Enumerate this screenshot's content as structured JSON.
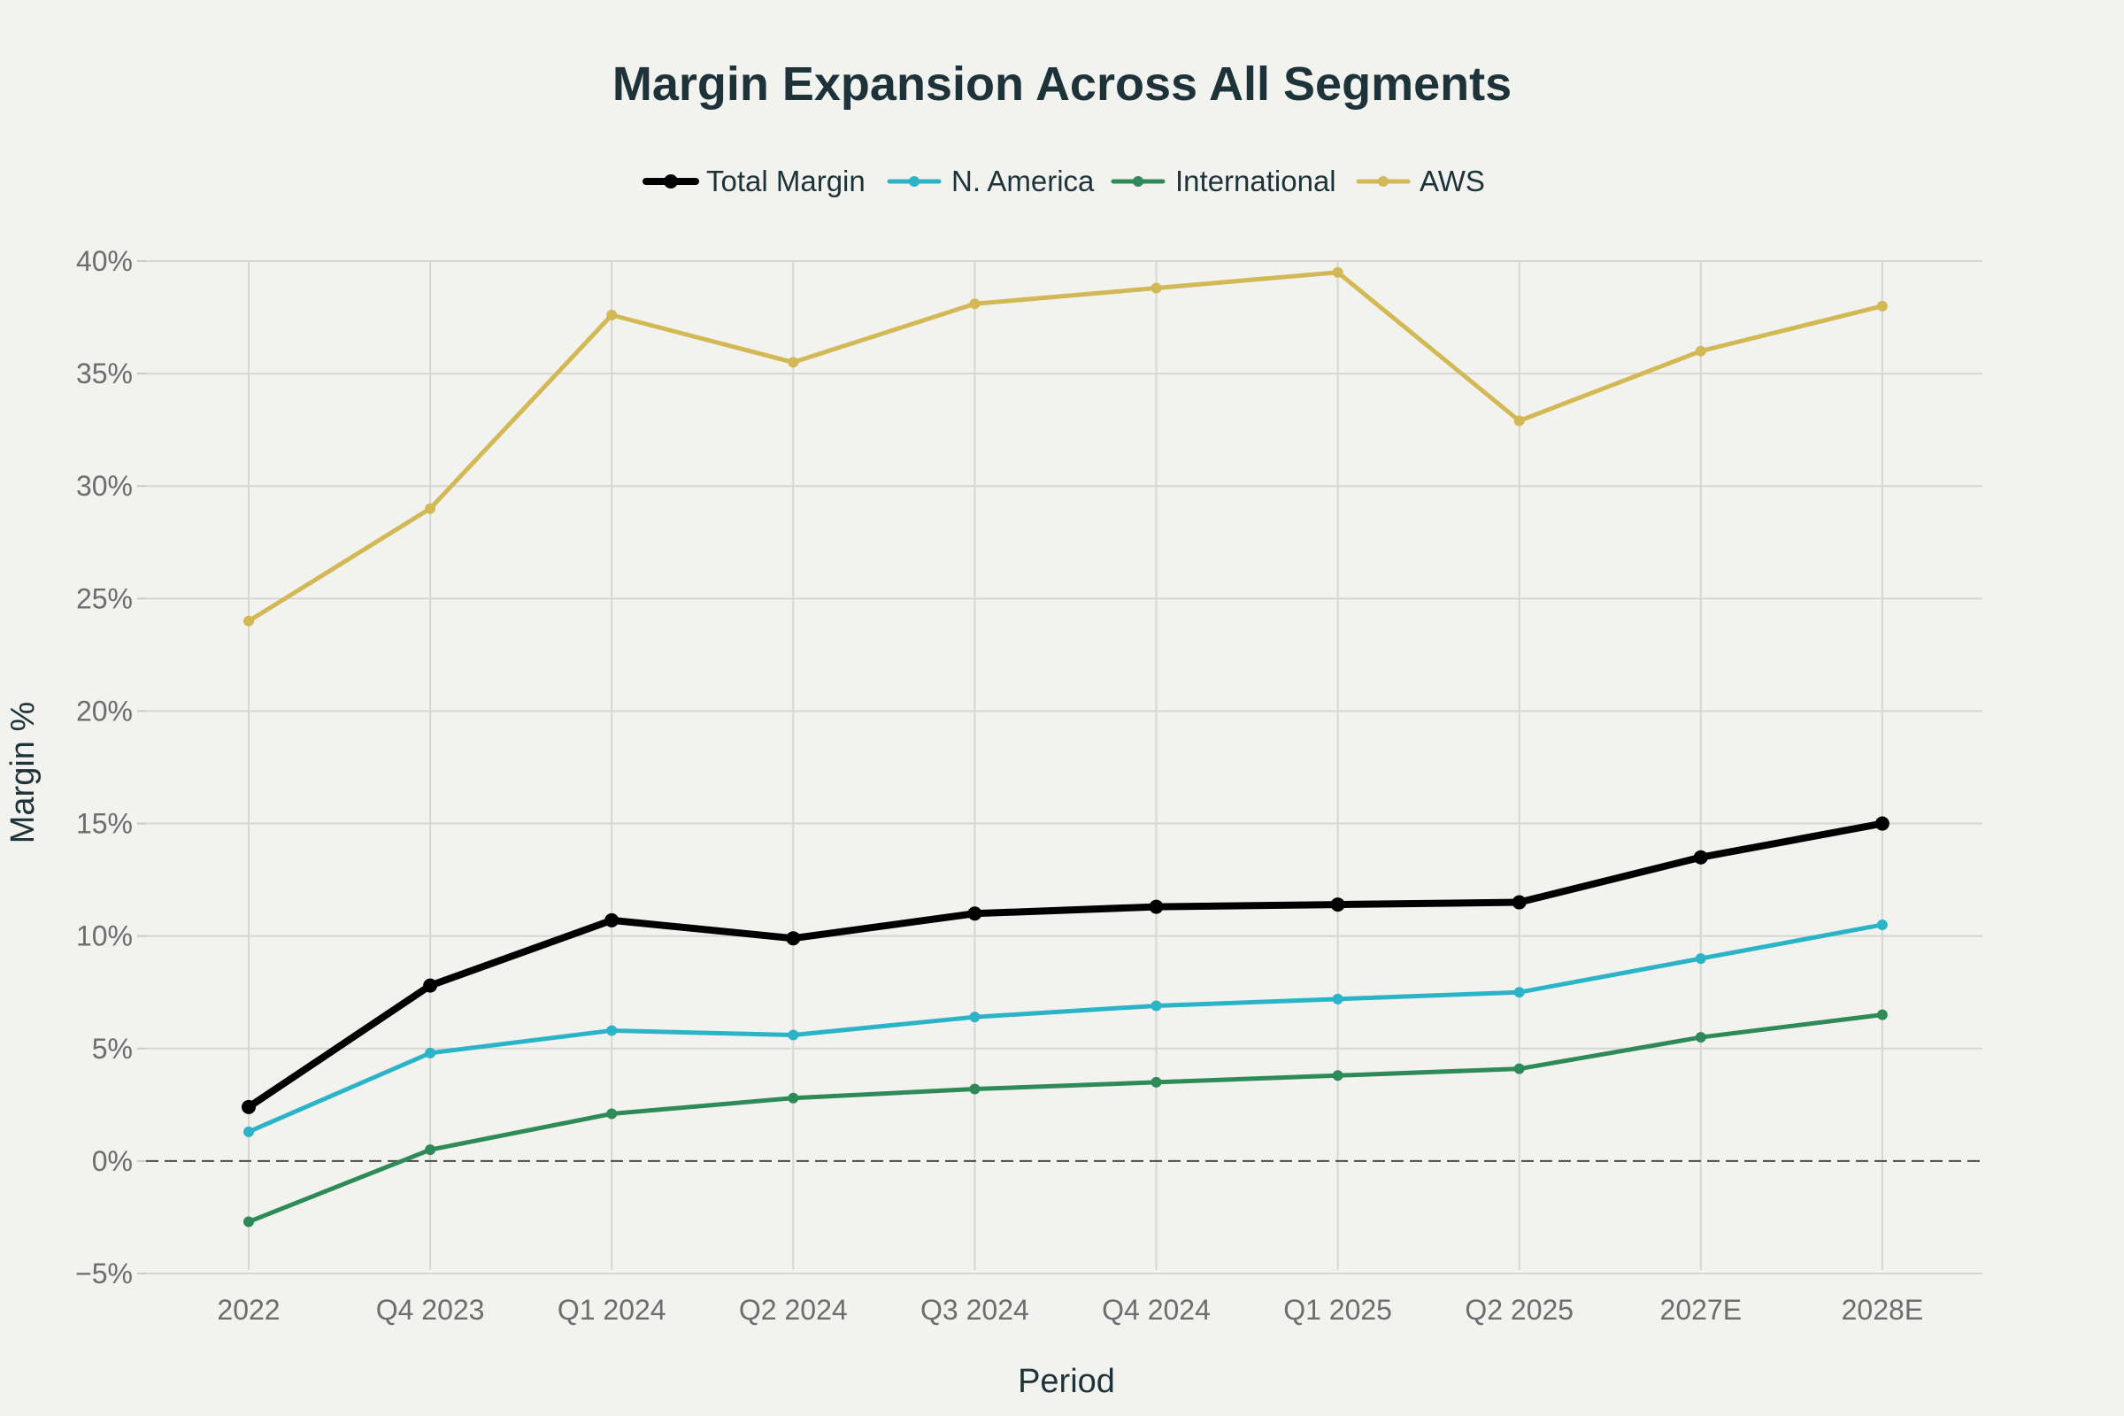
{
  "chart_data": {
    "type": "line",
    "title": "Margin Expansion Across All Segments",
    "xlabel": "Period",
    "ylabel": "Margin %",
    "categories": [
      "2022",
      "Q4 2023",
      "Q1 2024",
      "Q2 2024",
      "Q3 2024",
      "Q4 2024",
      "Q1 2025",
      "Q2 2025",
      "2027E",
      "2028E"
    ],
    "ylim": [
      -5,
      40
    ],
    "yticks": [
      -5,
      0,
      5,
      10,
      15,
      20,
      25,
      30,
      35,
      40
    ],
    "ytick_labels": [
      "−5%",
      "0%",
      "5%",
      "10%",
      "15%",
      "20%",
      "25%",
      "30%",
      "35%",
      "40%"
    ],
    "zero_line": true,
    "grid": true,
    "legend_position": "top-center",
    "series": [
      {
        "name": "Total Margin",
        "color": "#000000",
        "emphasis": true,
        "values": [
          2.4,
          7.8,
          10.7,
          9.9,
          11.0,
          11.3,
          11.4,
          11.5,
          13.5,
          15.0
        ]
      },
      {
        "name": "N. America",
        "color": "#2bb3c8",
        "emphasis": false,
        "values": [
          1.3,
          4.8,
          5.8,
          5.6,
          6.4,
          6.9,
          7.2,
          7.5,
          9.0,
          10.5
        ]
      },
      {
        "name": "International",
        "color": "#2e8b57",
        "emphasis": false,
        "values": [
          -2.7,
          0.5,
          2.1,
          2.8,
          3.2,
          3.5,
          3.8,
          4.1,
          5.5,
          6.5
        ]
      },
      {
        "name": "AWS",
        "color": "#d3b955",
        "emphasis": false,
        "values": [
          24.0,
          29.0,
          37.6,
          35.5,
          38.1,
          38.8,
          39.5,
          32.9,
          36.0,
          38.0
        ]
      }
    ]
  }
}
